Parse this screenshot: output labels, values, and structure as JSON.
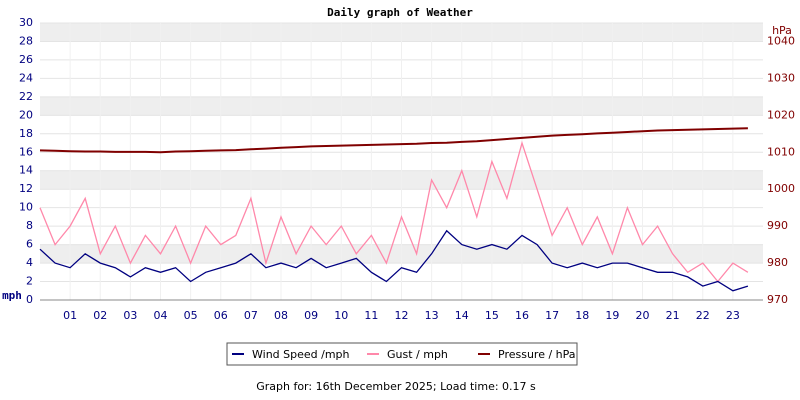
{
  "chart_data": {
    "type": "line",
    "title": "Daily graph of Weather",
    "y_label": "mph",
    "y2_label": "hPa",
    "footer": "Graph for: 16th December 2025; Load time: 0.17 s",
    "grid": true,
    "x": [
      0,
      0.5,
      1,
      1.5,
      2,
      2.5,
      3,
      3.5,
      4,
      4.5,
      5,
      5.5,
      6,
      6.5,
      7,
      7.5,
      8,
      8.5,
      9,
      9.5,
      10,
      10.5,
      11,
      11.5,
      12,
      12.5,
      13,
      13.5,
      14,
      14.5,
      15,
      15.5,
      16,
      16.5,
      17,
      17.5,
      18,
      18.5,
      19,
      19.5,
      20,
      20.5,
      21,
      21.5,
      22,
      22.5,
      23,
      23.5
    ],
    "xlim": [
      0,
      24
    ],
    "xticks": [
      {
        "value": 1,
        "label": "01"
      },
      {
        "value": 2,
        "label": "02"
      },
      {
        "value": 3,
        "label": "03"
      },
      {
        "value": 4,
        "label": "04"
      },
      {
        "value": 5,
        "label": "05"
      },
      {
        "value": 6,
        "label": "06"
      },
      {
        "value": 7,
        "label": "07"
      },
      {
        "value": 8,
        "label": "08"
      },
      {
        "value": 9,
        "label": "09"
      },
      {
        "value": 10,
        "label": "10"
      },
      {
        "value": 11,
        "label": "11"
      },
      {
        "value": 12,
        "label": "12"
      },
      {
        "value": 13,
        "label": "13"
      },
      {
        "value": 14,
        "label": "14"
      },
      {
        "value": 15,
        "label": "15"
      },
      {
        "value": 16,
        "label": "16"
      },
      {
        "value": 17,
        "label": "17"
      },
      {
        "value": 18,
        "label": "18"
      },
      {
        "value": 19,
        "label": "19"
      },
      {
        "value": 20,
        "label": "20"
      },
      {
        "value": 21,
        "label": "21"
      },
      {
        "value": 22,
        "label": "22"
      },
      {
        "value": 23,
        "label": "23"
      }
    ],
    "ylim": [
      0,
      30
    ],
    "yticks": [
      0,
      2,
      4,
      6,
      8,
      10,
      12,
      14,
      16,
      18,
      20,
      22,
      24,
      26,
      28,
      30
    ],
    "y2lim": [
      970,
      1045
    ],
    "y2ticks": [
      970,
      980,
      990,
      1000,
      1010,
      1020,
      1030,
      1040
    ],
    "series": [
      {
        "name": "Wind Speed /mph",
        "color": "#000080",
        "values": [
          5.5,
          4,
          3.5,
          5,
          4,
          3.5,
          2.5,
          3.5,
          3,
          3.5,
          2,
          3,
          3.5,
          4,
          5,
          3.5,
          4,
          3.5,
          4.5,
          3.5,
          4,
          4.5,
          3,
          2,
          3.5,
          3,
          5,
          7.5,
          6,
          5.5,
          6,
          5.5,
          7,
          6,
          4,
          3.5,
          4,
          3.5,
          4,
          4,
          3.5,
          3,
          3,
          2.5,
          1.5,
          2,
          1,
          1.5
        ]
      },
      {
        "name": "Gust / mph",
        "color": "#ff88aa",
        "values": [
          10,
          6,
          8,
          11,
          5,
          8,
          4,
          7,
          5,
          8,
          4,
          8,
          6,
          7,
          11,
          4,
          9,
          5,
          8,
          6,
          8,
          5,
          7,
          4,
          9,
          5,
          13,
          10,
          14,
          9,
          15,
          11,
          17,
          12,
          7,
          10,
          6,
          9,
          5,
          10,
          6,
          8,
          5,
          3,
          4,
          2,
          4,
          3
        ]
      },
      {
        "name": "Pressure / hPa",
        "color": "#800000",
        "axis": "y2",
        "values": [
          1010.5,
          1010.4,
          1010.3,
          1010.2,
          1010.2,
          1010.1,
          1010.1,
          1010.1,
          1010,
          1010.2,
          1010.3,
          1010.4,
          1010.5,
          1010.6,
          1010.8,
          1011,
          1011.2,
          1011.4,
          1011.6,
          1011.7,
          1011.8,
          1011.9,
          1012,
          1012.1,
          1012.2,
          1012.3,
          1012.5,
          1012.6,
          1012.8,
          1013,
          1013.3,
          1013.6,
          1013.9,
          1014.2,
          1014.5,
          1014.7,
          1014.9,
          1015.1,
          1015.3,
          1015.5,
          1015.7,
          1015.9,
          1016,
          1016.1,
          1016.2,
          1016.3,
          1016.4,
          1016.5
        ]
      }
    ]
  }
}
